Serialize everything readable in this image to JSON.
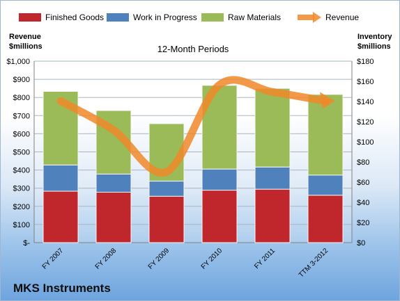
{
  "company": "MKS Instruments",
  "chart_data": {
    "type": "bar",
    "stacked": true,
    "title": "12-Month Periods",
    "left_axis_label": [
      "Revenue",
      "$millions"
    ],
    "right_axis_label": [
      "Inventory",
      "$millions"
    ],
    "categories": [
      "FY 2007",
      "FY 2008",
      "FY 2009",
      "FY 2010",
      "FY 2011",
      "TTM 3-2012"
    ],
    "series": [
      {
        "name": "Finished Goods",
        "axis": "right",
        "color": "#c0272d",
        "values": [
          51,
          50,
          46,
          52,
          53,
          47
        ]
      },
      {
        "name": "Work in Progress",
        "axis": "right",
        "color": "#4f81bd",
        "values": [
          26,
          18,
          15,
          21,
          22,
          20
        ]
      },
      {
        "name": "Raw Materials",
        "axis": "right",
        "color": "#9bbb59",
        "values": [
          73,
          63,
          57,
          83,
          78,
          80
        ]
      },
      {
        "name": "Revenue",
        "axis": "left",
        "type": "line",
        "color": "#f0882a",
        "values": [
          780,
          620,
          390,
          870,
          830,
          780
        ]
      }
    ],
    "left_axis": {
      "min": 0,
      "max": 1000,
      "step": 100,
      "tick_labels": [
        "$-",
        "$100",
        "$200",
        "$300",
        "$400",
        "$500",
        "$600",
        "$700",
        "$800",
        "$900",
        "$1,000"
      ]
    },
    "right_axis": {
      "min": 0,
      "max": 180,
      "step": 20,
      "tick_labels": [
        "$0",
        "$20",
        "$40",
        "$60",
        "$80",
        "$100",
        "$120",
        "$140",
        "$160",
        "$180"
      ]
    },
    "legend_position": "top",
    "grid": true
  }
}
